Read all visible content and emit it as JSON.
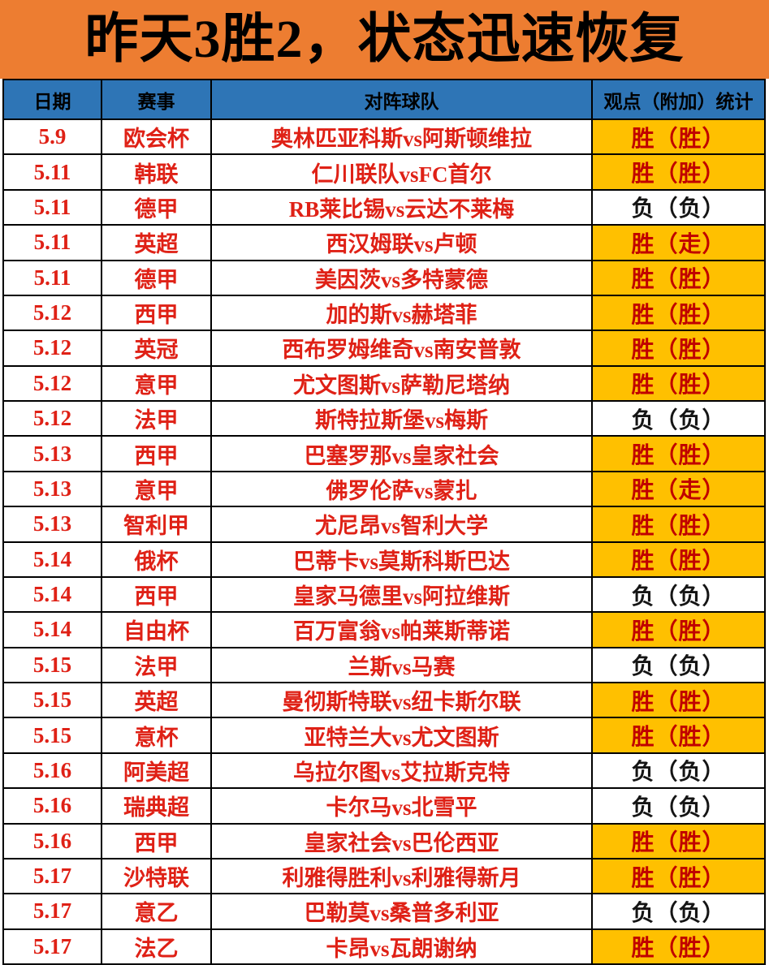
{
  "banner": {
    "title": "昨天3胜2，状态迅速恢复"
  },
  "table": {
    "headers": [
      "日期",
      "赛事",
      "对阵球队",
      "观点（附加）统计"
    ],
    "rows": [
      {
        "date": "5.9",
        "league": "欧会杯",
        "match": "奥林匹亚科斯vs阿斯顿维拉",
        "result": "胜（胜）",
        "win": true
      },
      {
        "date": "5.11",
        "league": "韩联",
        "match": "仁川联队vsFC首尔",
        "result": "胜（胜）",
        "win": true
      },
      {
        "date": "5.11",
        "league": "德甲",
        "match": "RB莱比锡vs云达不莱梅",
        "result": "负（负）",
        "win": false
      },
      {
        "date": "5.11",
        "league": "英超",
        "match": "西汉姆联vs卢顿",
        "result": "胜（走）",
        "win": true
      },
      {
        "date": "5.11",
        "league": "德甲",
        "match": "美因茨vs多特蒙德",
        "result": "胜（胜）",
        "win": true
      },
      {
        "date": "5.12",
        "league": "西甲",
        "match": "加的斯vs赫塔菲",
        "result": "胜（胜）",
        "win": true
      },
      {
        "date": "5.12",
        "league": "英冠",
        "match": "西布罗姆维奇vs南安普敦",
        "result": "胜（胜）",
        "win": true
      },
      {
        "date": "5.12",
        "league": "意甲",
        "match": "尤文图斯vs萨勒尼塔纳",
        "result": "胜（胜）",
        "win": true
      },
      {
        "date": "5.12",
        "league": "法甲",
        "match": "斯特拉斯堡vs梅斯",
        "result": "负（负）",
        "win": false
      },
      {
        "date": "5.13",
        "league": "西甲",
        "match": "巴塞罗那vs皇家社会",
        "result": "胜（胜）",
        "win": true
      },
      {
        "date": "5.13",
        "league": "意甲",
        "match": "佛罗伦萨vs蒙扎",
        "result": "胜（走）",
        "win": true
      },
      {
        "date": "5.13",
        "league": "智利甲",
        "match": "尤尼昂vs智利大学",
        "result": "胜（胜）",
        "win": true
      },
      {
        "date": "5.14",
        "league": "俄杯",
        "match": "巴蒂卡vs莫斯科斯巴达",
        "result": "胜（胜）",
        "win": true
      },
      {
        "date": "5.14",
        "league": "西甲",
        "match": "皇家马德里vs阿拉维斯",
        "result": "负（负）",
        "win": false
      },
      {
        "date": "5.14",
        "league": "自由杯",
        "match": "百万富翁vs帕莱斯蒂诺",
        "result": "胜（胜）",
        "win": true
      },
      {
        "date": "5.15",
        "league": "法甲",
        "match": "兰斯vs马赛",
        "result": "负（负）",
        "win": false
      },
      {
        "date": "5.15",
        "league": "英超",
        "match": "曼彻斯特联vs纽卡斯尔联",
        "result": "胜（胜）",
        "win": true
      },
      {
        "date": "5.15",
        "league": "意杯",
        "match": "亚特兰大vs尤文图斯",
        "result": "胜（胜）",
        "win": true
      },
      {
        "date": "5.16",
        "league": "阿美超",
        "match": "乌拉尔图vs艾拉斯克特",
        "result": "负（负）",
        "win": false
      },
      {
        "date": "5.16",
        "league": "瑞典超",
        "match": "卡尔马vs北雪平",
        "result": "负（负）",
        "win": false
      },
      {
        "date": "5.16",
        "league": "西甲",
        "match": "皇家社会vs巴伦西亚",
        "result": "胜（胜）",
        "win": true
      },
      {
        "date": "5.17",
        "league": "沙特联",
        "match": "利雅得胜利vs利雅得新月",
        "result": "胜（胜）",
        "win": true
      },
      {
        "date": "5.17",
        "league": "意乙",
        "match": "巴勒莫vs桑普多利亚",
        "result": "负（负）",
        "win": false
      },
      {
        "date": "5.17",
        "league": "法乙",
        "match": "卡昂vs瓦朗谢纳",
        "result": "胜（胜）",
        "win": true
      }
    ]
  },
  "colors": {
    "banner_bg": "#ED7D31",
    "header_bg": "#2E75B6",
    "win_bg": "#FFC000",
    "win_text": "#C00000",
    "text_red": "#DF2116",
    "border": "#000000"
  }
}
